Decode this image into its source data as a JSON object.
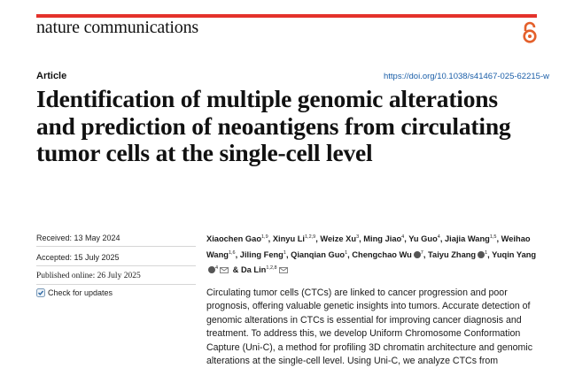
{
  "header": {
    "journal_name": "nature communications",
    "open_access_icon": "open-access-icon"
  },
  "article": {
    "type": "Article",
    "doi": "https://doi.org/10.1038/s41467-025-62215-w",
    "title": "Identification of multiple genomic alterations and prediction of neoantigens from circulating tumor cells at the single-cell level"
  },
  "dates": {
    "received": "Received: 13 May 2024",
    "accepted": "Accepted: 15 July 2025",
    "published": "Published online: 26 July 2025",
    "check_updates": "Check for updates"
  },
  "authors": [
    {
      "name": "Xiaochen Gao",
      "aff": "1,9"
    },
    {
      "name": "Xinyu Li",
      "aff": "1,2,9"
    },
    {
      "name": "Weize Xu",
      "aff": "3"
    },
    {
      "name": "Ming Jiao",
      "aff": "4"
    },
    {
      "name": "Yu Guo",
      "aff": "4"
    },
    {
      "name": "Jiajia Wang",
      "aff": "1,5"
    },
    {
      "name": "Weihao Wang",
      "aff": "1,6"
    },
    {
      "name": "Jiling Feng",
      "aff": "1"
    },
    {
      "name": "Qianqian Guo",
      "aff": "1"
    },
    {
      "name": "Chengchao Wu",
      "aff": "7"
    },
    {
      "name": "Taiyu Zhang",
      "aff": "1"
    },
    {
      "name": "Yuqin Yang",
      "aff": "4"
    },
    {
      "name": "Da Lin",
      "aff": "1,2,8"
    }
  ],
  "abstract": "Circulating tumor cells (CTCs) are linked to cancer progression and poor prognosis, offering valuable genetic insights into tumors. Accurate detection of genomic alterations in CTCs is essential for improving cancer diagnosis and treatment. To address this, we develop Uniform Chromosome Conformation Capture (Uni-C), a method for profiling 3D chromatin architecture and genomic alterations at the single-cell level. Using Uni-C, we analyze CTCs from",
  "colors": {
    "accent_bar": "#e4322b",
    "link": "#1a5ea8",
    "oa_icon": "#e4602b"
  }
}
